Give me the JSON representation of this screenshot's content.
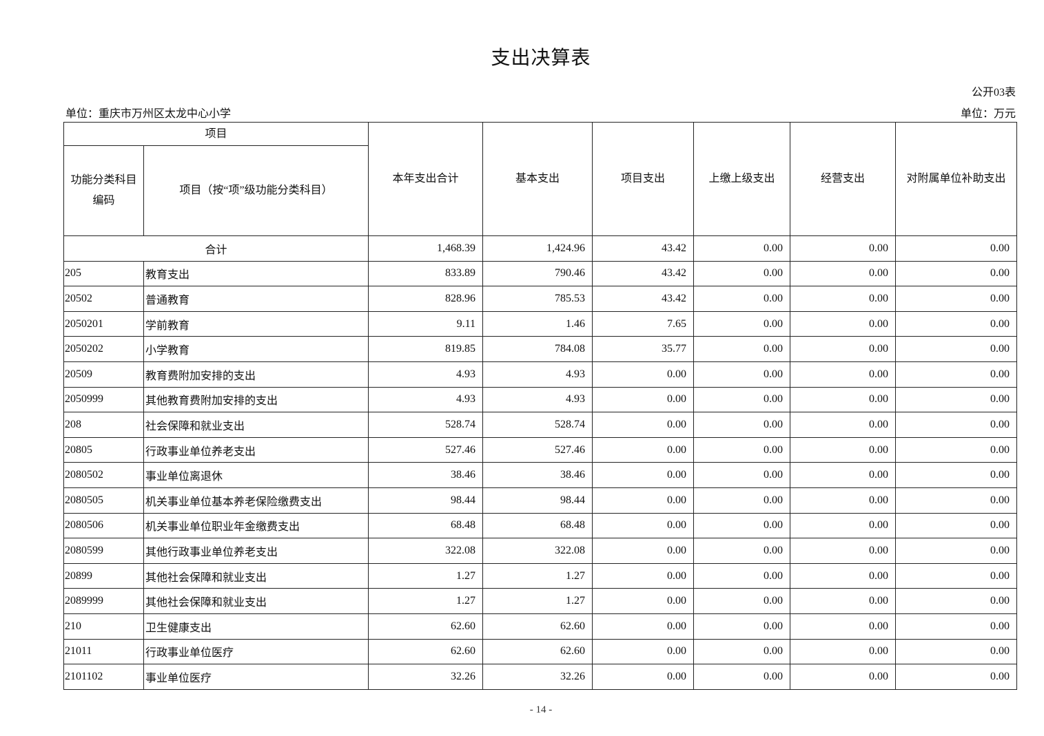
{
  "title": "支出决算表",
  "form_no": "公开03表",
  "unit_org": "单位：重庆市万州区太龙中心小学",
  "unit_currency": "单位：万元",
  "headers": {
    "project": "项目",
    "code": "功能分类科目编码",
    "name": "项目（按“项”级功能分类科目）",
    "total": "本年支出合计",
    "basic": "基本支出",
    "project_exp": "项目支出",
    "upper": "上缴上级支出",
    "business": "经营支出",
    "subsidy": "对附属单位补助支出"
  },
  "total_row": {
    "label": "合计",
    "values": [
      "1,468.39",
      "1,424.96",
      "43.42",
      "0.00",
      "0.00",
      "0.00"
    ]
  },
  "rows": [
    {
      "code": "205",
      "name": "教育支出",
      "values": [
        "833.89",
        "790.46",
        "43.42",
        "0.00",
        "0.00",
        "0.00"
      ]
    },
    {
      "code": "20502",
      "name": "普通教育",
      "values": [
        "828.96",
        "785.53",
        "43.42",
        "0.00",
        "0.00",
        "0.00"
      ]
    },
    {
      "code": "2050201",
      "name": "学前教育",
      "values": [
        "9.11",
        "1.46",
        "7.65",
        "0.00",
        "0.00",
        "0.00"
      ]
    },
    {
      "code": "2050202",
      "name": "小学教育",
      "values": [
        "819.85",
        "784.08",
        "35.77",
        "0.00",
        "0.00",
        "0.00"
      ]
    },
    {
      "code": "20509",
      "name": "教育费附加安排的支出",
      "values": [
        "4.93",
        "4.93",
        "0.00",
        "0.00",
        "0.00",
        "0.00"
      ]
    },
    {
      "code": "2050999",
      "name": "其他教育费附加安排的支出",
      "values": [
        "4.93",
        "4.93",
        "0.00",
        "0.00",
        "0.00",
        "0.00"
      ]
    },
    {
      "code": "208",
      "name": "社会保障和就业支出",
      "values": [
        "528.74",
        "528.74",
        "0.00",
        "0.00",
        "0.00",
        "0.00"
      ]
    },
    {
      "code": "20805",
      "name": "行政事业单位养老支出",
      "values": [
        "527.46",
        "527.46",
        "0.00",
        "0.00",
        "0.00",
        "0.00"
      ]
    },
    {
      "code": "2080502",
      "name": "事业单位离退休",
      "values": [
        "38.46",
        "38.46",
        "0.00",
        "0.00",
        "0.00",
        "0.00"
      ]
    },
    {
      "code": "2080505",
      "name": "机关事业单位基本养老保险缴费支出",
      "values": [
        "98.44",
        "98.44",
        "0.00",
        "0.00",
        "0.00",
        "0.00"
      ]
    },
    {
      "code": "2080506",
      "name": "机关事业单位职业年金缴费支出",
      "values": [
        "68.48",
        "68.48",
        "0.00",
        "0.00",
        "0.00",
        "0.00"
      ]
    },
    {
      "code": "2080599",
      "name": "其他行政事业单位养老支出",
      "values": [
        "322.08",
        "322.08",
        "0.00",
        "0.00",
        "0.00",
        "0.00"
      ]
    },
    {
      "code": "20899",
      "name": "其他社会保障和就业支出",
      "values": [
        "1.27",
        "1.27",
        "0.00",
        "0.00",
        "0.00",
        "0.00"
      ]
    },
    {
      "code": "2089999",
      "name": "其他社会保障和就业支出",
      "values": [
        "1.27",
        "1.27",
        "0.00",
        "0.00",
        "0.00",
        "0.00"
      ]
    },
    {
      "code": "210",
      "name": "卫生健康支出",
      "values": [
        "62.60",
        "62.60",
        "0.00",
        "0.00",
        "0.00",
        "0.00"
      ]
    },
    {
      "code": "21011",
      "name": "行政事业单位医疗",
      "values": [
        "62.60",
        "62.60",
        "0.00",
        "0.00",
        "0.00",
        "0.00"
      ]
    },
    {
      "code": "2101102",
      "name": "事业单位医疗",
      "values": [
        "32.26",
        "32.26",
        "0.00",
        "0.00",
        "0.00",
        "0.00"
      ]
    }
  ],
  "page_number": "- 14 -"
}
